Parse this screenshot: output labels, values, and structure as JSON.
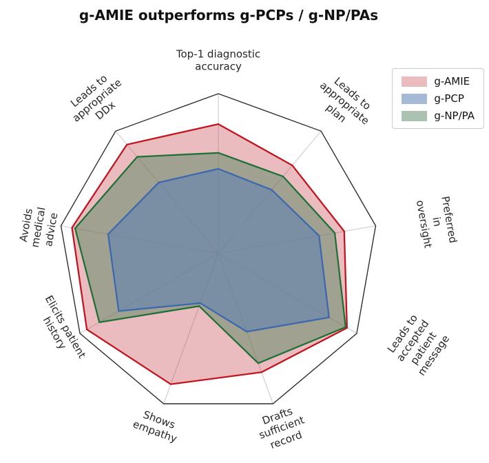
{
  "title": "g-AMIE outperforms g-PCPs / g-NP/PAs",
  "chart_data": {
    "type": "radar",
    "categories": [
      "Top-1 diagnostic\naccuracy",
      "Leads to\nappropriate\nplan",
      "Preferred in\noversight",
      "Leads to\naccepted\npatient message",
      "Drafts\nsufficient\nrecord",
      "Shows\nempathy",
      "Elicits patient\nhistory",
      "Avoids\nmedical\nadvice",
      "Leads to\nappropriate\nDDx"
    ],
    "series": [
      {
        "name": "g-AMIE",
        "line_color": "#c1161f",
        "fill_color": "rgba(199,62,72,0.35)",
        "values": [
          0.81,
          0.72,
          0.8,
          0.93,
          0.79,
          0.87,
          0.95,
          0.93,
          0.89
        ]
      },
      {
        "name": "g-PCP",
        "line_color": "#3c68ae",
        "fill_color": "rgba(93,130,180,0.55)",
        "values": [
          0.53,
          0.52,
          0.64,
          0.8,
          0.52,
          0.33,
          0.72,
          0.7,
          0.58
        ]
      },
      {
        "name": "g-NP/PA",
        "line_color": "#1e7037",
        "fill_color": "rgba(88,133,100,0.5)",
        "values": [
          0.63,
          0.63,
          0.74,
          0.92,
          0.73,
          0.35,
          0.86,
          0.91,
          0.79
        ]
      }
    ],
    "rlim": [
      0,
      1
    ],
    "axes_count": 9,
    "start_angle_deg": 90,
    "direction": "clockwise",
    "gridlines": "spokes only, no radial rings, polygonal outer frame",
    "legend_position": "upper right"
  }
}
